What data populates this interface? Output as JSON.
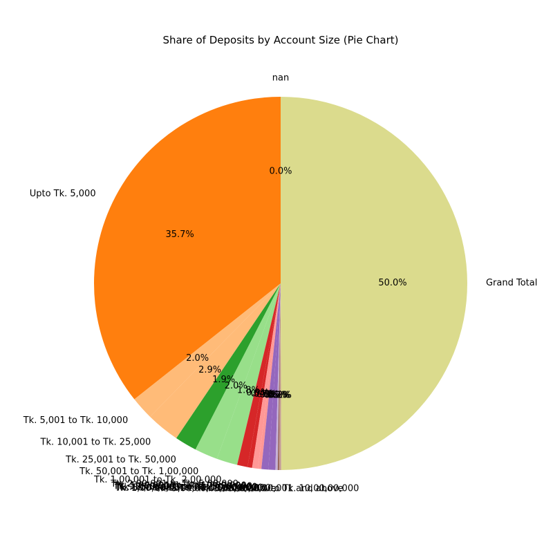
{
  "chart_data": {
    "type": "pie",
    "title": "Share of Deposits by Account Size (Pie Chart)",
    "start_angle_deg": 90,
    "direction": "counterclockwise",
    "slices": [
      {
        "label": "nan",
        "value": 0.0,
        "pct_label": "0.0%",
        "color": "#1f77b4"
      },
      {
        "label": "Upto Tk. 5,000",
        "value": 35.7,
        "pct_label": "35.7%",
        "color": "#ff7f0e"
      },
      {
        "label": "Tk. 5,001 to Tk. 10,000",
        "value": 2.0,
        "pct_label": "2.0%",
        "color": "#ffbb78"
      },
      {
        "label": "Tk. 10,001 to Tk. 25,000",
        "value": 2.9,
        "pct_label": "2.9%",
        "color": "#ffbb78"
      },
      {
        "label": "Tk. 25,001 to Tk. 50,000",
        "value": 1.9,
        "pct_label": "1.9%",
        "color": "#2ca02c"
      },
      {
        "label": "Tk. 50,001 to Tk. 1,00,000",
        "value": 2.0,
        "pct_label": "2.0%",
        "color": "#98df8a"
      },
      {
        "label": "Tk. 1,00,001 to Tk. 2,00,000",
        "value": 1.8,
        "pct_label": "1.8%",
        "color": "#98df8a"
      },
      {
        "label": "Tk. 2,00,001 to Tk. 5,00,000",
        "value": 0.9,
        "pct_label": "0.9%",
        "color": "#d62728"
      },
      {
        "label": "Tk. 5,00,001 to Tk. 10,00,000",
        "value": 0.4,
        "pct_label": "0.4%",
        "color": "#d62728"
      },
      {
        "label": "Tk. 10,00,001 to Tk. 25,00,000",
        "value": 0.5,
        "pct_label": "0.5%",
        "color": "#ff9896"
      },
      {
        "label": "Tk. 25,00,001 to Tk. 50,00,000",
        "value": 0.3,
        "pct_label": "0.3%",
        "color": "#ff9896"
      },
      {
        "label": "Tk. 50,00,001 to Tk. 1,00,00,000",
        "value": 0.6,
        "pct_label": "0.6%",
        "color": "#9467bd"
      },
      {
        "label": "Tk. 1,00,00,001 to Tk. 5,00,00,000",
        "value": 0.6,
        "pct_label": "0.6%",
        "color": "#9467bd"
      },
      {
        "label": "Tk. 5,00,00,001 and above",
        "value": 0.2,
        "pct_label": "0.2%",
        "color": "#c5b0d5"
      },
      {
        "label": "Tk. 5,00,00,001 to Tk. 10,00,00,000",
        "value": 0.1,
        "pct_label": "0.1%",
        "color": "#8c564b"
      },
      {
        "label": "Tk. 10,00,00,001 and above",
        "value": 0.2,
        "pct_label": "0.2%",
        "color": "#c49c94"
      },
      {
        "label": "Grand Total",
        "value": 50.0,
        "pct_label": "50.0%",
        "color": "#dbdb8d"
      }
    ]
  }
}
